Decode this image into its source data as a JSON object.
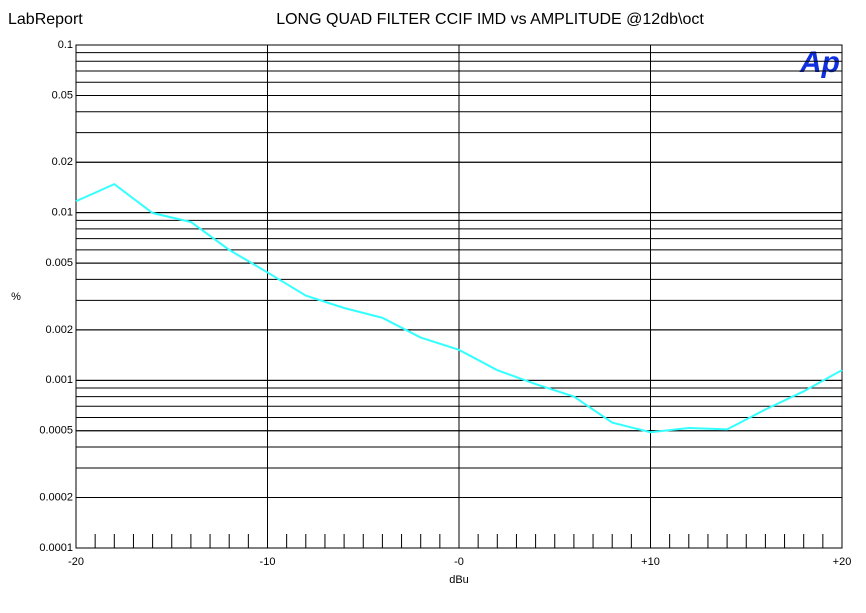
{
  "app": "LabReport",
  "logo": "Ap",
  "chart_data": {
    "type": "line",
    "title": "LONG QUAD FILTER CCIF IMD vs AMPLITUDE @12db\\oct",
    "x_label": "dBu",
    "y_label": "%",
    "log_y": true,
    "grid": true,
    "minor_grid": true,
    "xlim": [
      -20,
      20
    ],
    "ylim": [
      0.0001,
      0.1
    ],
    "xticks": [
      -20,
      -10,
      {
        "value": 0,
        "label": "-0"
      },
      {
        "value": 10,
        "label": "+10"
      },
      {
        "value": 20,
        "label": "+20"
      }
    ],
    "yticks": [
      0.1,
      0.05,
      0.02,
      0.01,
      0.005,
      0.002,
      0.001,
      0.0005,
      0.0002,
      0.0001
    ],
    "x": [
      -20,
      -18,
      -16,
      -14,
      -12,
      -10,
      -8,
      -6,
      -4,
      -2,
      0,
      2,
      4,
      6,
      8,
      10,
      12,
      14,
      16,
      18,
      20
    ],
    "series": [
      {
        "color": "#33ffff",
        "values": [
          0.0117,
          0.0148,
          0.00995,
          0.0088,
          0.006,
          0.0044,
          0.0032,
          0.0027,
          0.00236,
          0.0018,
          0.00152,
          0.00115,
          0.00095,
          0.0008,
          0.00056,
          0.00049,
          0.00052,
          0.00051,
          0.00067,
          0.00086,
          0.00115
        ]
      }
    ]
  }
}
